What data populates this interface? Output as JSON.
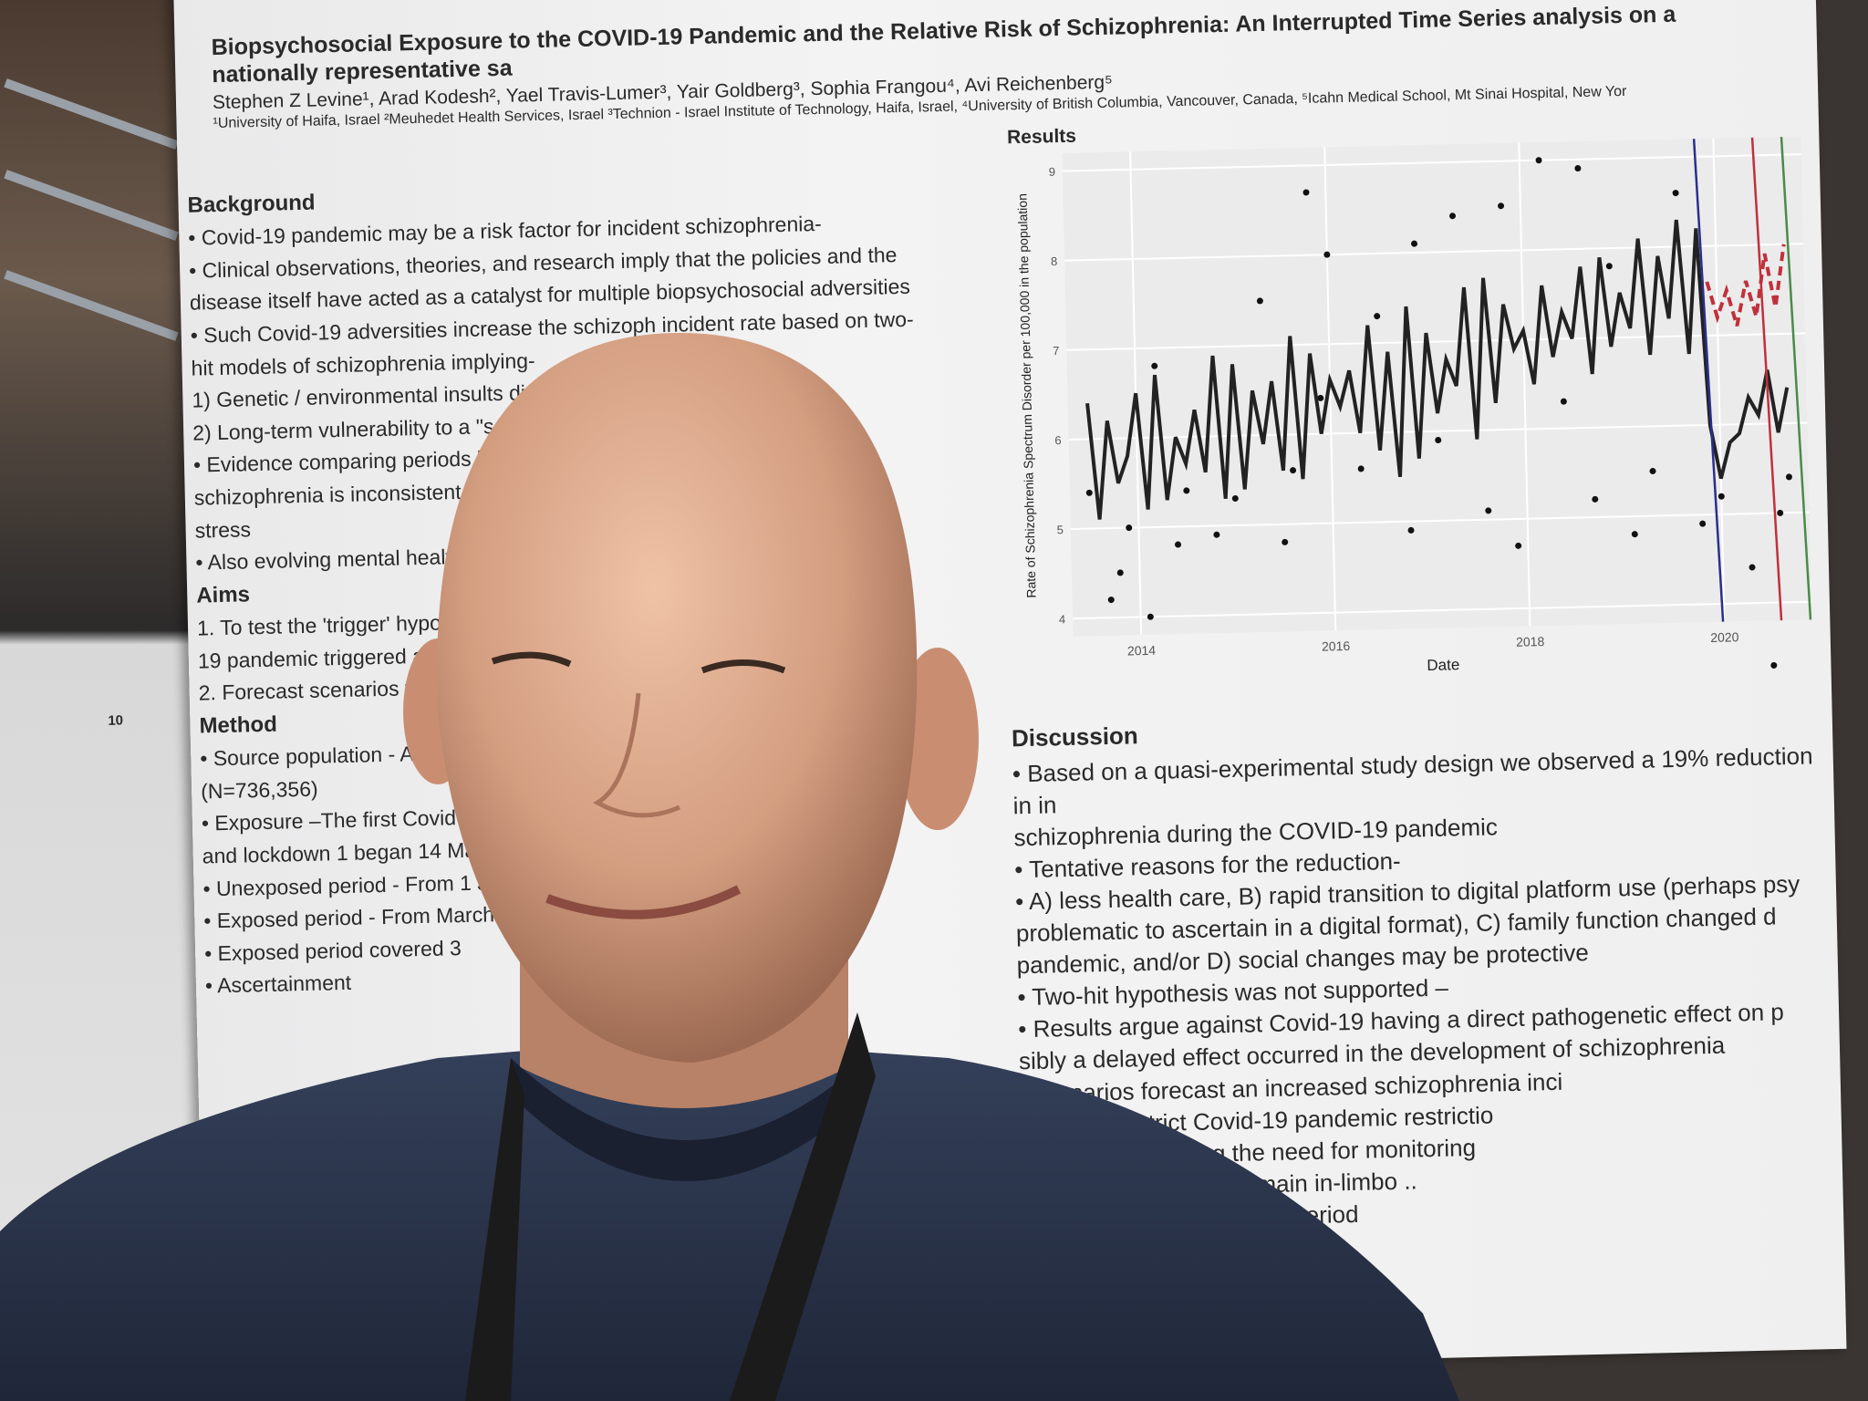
{
  "poster": {
    "title": "Biopsychosocial Exposure to the COVID-19 Pandemic and the Relative Risk of Schizophrenia: An Interrupted Time Series analysis on a nationally representative sa",
    "authors": "Stephen Z Levine¹, Arad Kodesh², Yael Travis-Lumer³, Yair Goldberg³, Sophia Frangou⁴, Avi Reichenberg⁵",
    "affiliations": "¹University of Haifa, Israel ²Meuhedet Health Services, Israel ³Technion - Israel Institute of Technology, Haifa, Israel, ⁴University of British Columbia, Vancouver, Canada, ⁵Icahn Medical School, Mt Sinai Hospital, New Yor",
    "left": {
      "background_heading": "Background",
      "background_lines": [
        "• Covid-19 pandemic may be a risk factor for incident schizophrenia-",
        "• Clinical observations, theories, and research imply that the policies and the",
        "disease itself have acted as a catalyst for multiple biopsychosocial adversities",
        "• Such Covid-19 adversities increase the schizoph          incident rate based on two-",
        "hit models of schizophrenia implying-",
        "1) Genetic / environmental insults dis                                          g-",
        "2) Long-term vulnerability to a \"sec                                              et",
        "• Evidence comparing periods b",
        "schizophrenia is inconsistent",
        "stress",
        "• Also evolving mental health n                                                   on"
      ],
      "aims_heading": "Aims",
      "aims_lines": [
        "1. To test the 'trigger' hypothes",
        "19 pandemic triggered a \"se",
        "2. Forecast scenarios to assist"
      ],
      "method_heading": "Method",
      "method_lines": [
        "• Source population - All memb                                                  ears",
        "(N=736,356)",
        "• Exposure –The first Covid-19 case                                              2020,",
        "and lockdown 1 began 14 March 2020",
        "• Unexposed period - From 1 January 20",
        "• Exposed period - From March 2020",
        "• Exposed period covered 3",
        "• Ascertainment"
      ],
      "page_marker": "10"
    },
    "results_heading": "Results",
    "discussion": {
      "heading": "Discussion",
      "lines": [
        "• Based on a quasi-experimental study design we observed a 19% reduction in in",
        "schizophrenia during the COVID-19 pandemic",
        "• Tentative reasons for the reduction-",
        "• A) less health care, B) rapid transition to digital platform use (perhaps psy",
        "problematic to ascertain in a digital format), C) family function changed d",
        "pandemic, and/or D) social changes may be protective",
        "• Two-hit hypothesis was not supported –",
        "• Results argue against Covid-19 having a direct pathogenetic effect on p",
        "sibly a delayed effect occurred in the development of schizophrenia",
        "t scenarios forecast an increased schizophrenia inci",
        "after lifting strict Covid-19 pandemic restrictio",
        "crease, highlighting the need for monitoring",
        "l future hazards, we remain in-limbo ..",
        "s may ultimately signify a period"
      ]
    }
  },
  "chart_data": {
    "type": "line",
    "xlabel": "Date",
    "ylabel": "Rate of Schizophrenia Spectrum Disorder per 100,000 in the population",
    "xlim": [
      2013.3,
      2020.9
    ],
    "ylim": [
      3.8,
      9.2
    ],
    "x_ticks": [
      "2014",
      "2016",
      "2018",
      "2020"
    ],
    "y_ticks": [
      "4",
      "5",
      "6",
      "7",
      "8",
      "9"
    ],
    "grid": true,
    "observed_line": {
      "color": "#222222",
      "x": [
        2013.5,
        2013.6,
        2013.7,
        2013.8,
        2013.9,
        2014.0,
        2014.1,
        2014.2,
        2014.3,
        2014.4,
        2014.5,
        2014.6,
        2014.7,
        2014.8,
        2014.9,
        2015.0,
        2015.1,
        2015.2,
        2015.3,
        2015.4,
        2015.5,
        2015.6,
        2015.7,
        2015.8,
        2015.9,
        2016.0,
        2016.1,
        2016.2,
        2016.3,
        2016.4,
        2016.5,
        2016.6,
        2016.7,
        2016.8,
        2016.9,
        2017.0,
        2017.1,
        2017.2,
        2017.3,
        2017.4,
        2017.5,
        2017.6,
        2017.7,
        2017.8,
        2017.9,
        2018.0,
        2018.1,
        2018.2,
        2018.3,
        2018.4,
        2018.5,
        2018.6,
        2018.7,
        2018.8,
        2018.9,
        2019.0,
        2019.1,
        2019.2,
        2019.3,
        2019.4,
        2019.5,
        2019.6,
        2019.7,
        2019.8,
        2019.9,
        2020.0,
        2020.1,
        2020.2,
        2020.3,
        2020.4,
        2020.5,
        2020.6,
        2020.7
      ],
      "y": [
        6.4,
        5.1,
        6.2,
        5.5,
        5.8,
        6.5,
        5.2,
        6.7,
        5.3,
        6.0,
        5.7,
        6.3,
        5.6,
        6.9,
        5.3,
        6.8,
        5.4,
        6.5,
        5.9,
        6.6,
        5.6,
        7.1,
        5.5,
        6.9,
        6.0,
        6.6,
        6.3,
        6.7,
        6.0,
        7.2,
        5.8,
        6.9,
        5.5,
        7.4,
        5.7,
        7.1,
        6.2,
        6.8,
        6.5,
        7.6,
        5.9,
        7.7,
        6.3,
        7.4,
        6.9,
        7.1,
        6.5,
        7.6,
        6.8,
        7.3,
        7.0,
        7.8,
        6.6,
        7.9,
        6.9,
        7.5,
        7.1,
        8.1,
        6.8,
        7.9,
        7.2,
        8.3,
        6.8,
        8.2,
        6.0,
        5.4,
        5.8,
        5.9,
        6.3,
        6.1,
        6.6,
        5.9,
        6.4
      ]
    },
    "observed_points": {
      "x": [
        2013.5,
        2013.7,
        2013.8,
        2013.9,
        2014.1,
        2014.2,
        2014.4,
        2014.5,
        2014.8,
        2015.0,
        2015.3,
        2015.5,
        2015.6,
        2015.8,
        2015.9,
        2016.0,
        2016.3,
        2016.5,
        2016.8,
        2016.9,
        2017.1,
        2017.3,
        2017.6,
        2017.8,
        2017.9,
        2018.2,
        2018.4,
        2018.6,
        2018.7,
        2018.9,
        2019.1,
        2019.3,
        2019.6,
        2019.8,
        2020.0,
        2020.3,
        2020.5,
        2020.6,
        2020.7
      ],
      "y": [
        5.4,
        4.2,
        4.5,
        5.0,
        4.0,
        6.8,
        4.8,
        5.4,
        4.9,
        5.3,
        7.5,
        4.8,
        5.6,
        8.7,
        6.4,
        8.0,
        5.6,
        7.3,
        4.9,
        8.1,
        5.9,
        8.4,
        5.1,
        8.5,
        4.7,
        9.0,
        6.3,
        8.9,
        5.2,
        7.8,
        4.8,
        5.5,
        8.6,
        4.9,
        5.2,
        4.4,
        3.3,
        5.0,
        5.4
      ]
    },
    "forecast_line": {
      "color": "#c0303c",
      "style": "dashed",
      "x": [
        2019.9,
        2020.0,
        2020.1,
        2020.2,
        2020.3,
        2020.4,
        2020.5,
        2020.6,
        2020.7
      ],
      "y": [
        7.6,
        7.2,
        7.5,
        7.1,
        7.6,
        7.2,
        7.9,
        7.3,
        8.0
      ]
    },
    "vertical_lines": [
      {
        "x": 2019.8,
        "color": "#2a2f8a"
      },
      {
        "x": 2020.4,
        "color": "#c0303c"
      },
      {
        "x": 2020.7,
        "color": "#4a8a4a"
      }
    ]
  },
  "colors": {
    "poster": "#efefef",
    "sweater": "#2b3448",
    "skin": "#d9a487",
    "lanyard": "#1b1b1b"
  }
}
